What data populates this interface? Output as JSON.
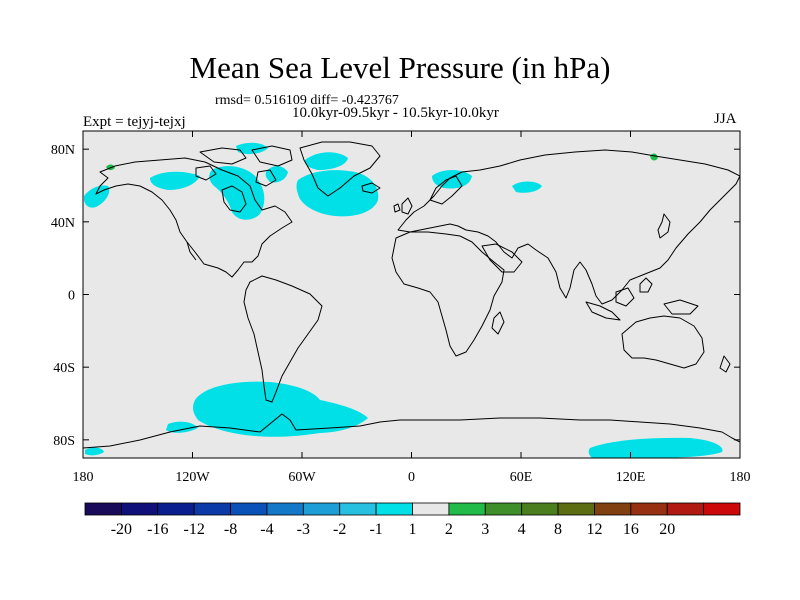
{
  "title": "Mean Sea Level Pressure (in hPa)",
  "stats_line": "rmsd= 0.516109 diff= -0.423767",
  "period_line": "10.0kyr-09.5kyr - 10.5kyr-10.0kyr",
  "experiment": "Expt = tejyj-tejxj",
  "season": "JJA",
  "lat_ticks": [
    {
      "label": "80N",
      "lat": 80
    },
    {
      "label": "40N",
      "lat": 40
    },
    {
      "label": "0",
      "lat": 0
    },
    {
      "label": "40S",
      "lat": -40
    },
    {
      "label": "80S",
      "lat": -80
    }
  ],
  "lon_ticks": [
    {
      "label": "180",
      "lon": -180
    },
    {
      "label": "120W",
      "lon": -120
    },
    {
      "label": "60W",
      "lon": -60
    },
    {
      "label": "0",
      "lon": 0
    },
    {
      "label": "60E",
      "lon": 60
    },
    {
      "label": "120E",
      "lon": 120
    },
    {
      "label": "180",
      "lon": 180
    }
  ],
  "colorbar": {
    "colors": [
      "#1a0a5a",
      "#10107a",
      "#0a1e90",
      "#0a3aa8",
      "#0a52b8",
      "#1478c8",
      "#1e9ed6",
      "#28c0e0",
      "#00e0e6",
      "#e8e8e8",
      "#20bb48",
      "#3e8e2a",
      "#4a7e1e",
      "#5c6c10",
      "#804010",
      "#963010",
      "#b01a10",
      "#cc0808"
    ],
    "labels": [
      "-20",
      "-16",
      "-12",
      "-8",
      "-4",
      "-3",
      "-2",
      "-1",
      "1",
      "2",
      "3",
      "4",
      "8",
      "12",
      "16",
      "20"
    ]
  },
  "map_colors": {
    "background": "#e8e8e8",
    "anomaly_fill": "#00e0e6",
    "positive_fill": "#20bb48",
    "coast": "#000000"
  }
}
